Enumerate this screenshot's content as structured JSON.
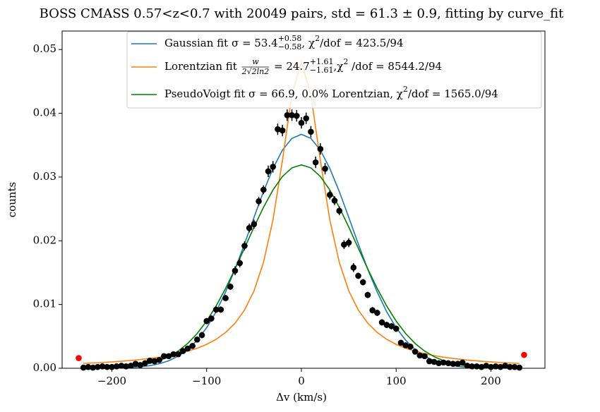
{
  "chart_data": {
    "type": "scatter",
    "title": "BOSS CMASS 0.57<z<0.7 with 20049 pairs, std = 61.3 ± 0.9, fitting by curve_fit",
    "x_label": "Δv (km/s)",
    "y_label": "counts",
    "xlim": [
      -252.5,
      257
    ],
    "ylim": [
      0,
      0.0529
    ],
    "xticks": [
      {
        "value": -200,
        "label": "−200"
      },
      {
        "value": -100,
        "label": "−100"
      },
      {
        "value": 0,
        "label": "0"
      },
      {
        "value": 100,
        "label": "100"
      },
      {
        "value": 200,
        "label": "200"
      }
    ],
    "yticks": [
      {
        "value": 0,
        "label": "0.00"
      },
      {
        "value": 0.01,
        "label": "0.01"
      },
      {
        "value": 0.02,
        "label": "0.02"
      },
      {
        "value": 0.03,
        "label": "0.03"
      },
      {
        "value": 0.04,
        "label": "0.04"
      },
      {
        "value": 0.05,
        "label": "0.05"
      }
    ],
    "legend": "upper right",
    "points": {
      "color": "#000000",
      "x": [
        -230,
        -225,
        -220,
        -215,
        -210,
        -205,
        -200,
        -195,
        -190,
        -185,
        -180,
        -175,
        -170,
        -165,
        -160,
        -155,
        -150,
        -145,
        -140,
        -135,
        -130,
        -125,
        -120,
        -115,
        -110,
        -105,
        -100,
        -95,
        -90,
        -85,
        -80,
        -75,
        -70,
        -65,
        -60,
        -55,
        -50,
        -45,
        -40,
        -35,
        -30,
        -25,
        -20,
        -15,
        -10,
        -5,
        0,
        5,
        10,
        15,
        20,
        25,
        30,
        35,
        40,
        45,
        50,
        55,
        60,
        65,
        70,
        75,
        80,
        85,
        90,
        95,
        100,
        105,
        110,
        115,
        120,
        125,
        130,
        135,
        140,
        145,
        150,
        155,
        160,
        165,
        170,
        175,
        180,
        185,
        190,
        195,
        200,
        205,
        210,
        215,
        220,
        225,
        230
      ],
      "values": [
        0.0001,
        0.0002,
        0.0001,
        0.0002,
        0.0003,
        0.0002,
        0.0002,
        0.0003,
        0.0004,
        0.0003,
        0.0004,
        0.0007,
        0.0005,
        0.0008,
        0.0012,
        0.0011,
        0.0013,
        0.0019,
        0.0019,
        0.0022,
        0.0022,
        0.0027,
        0.0031,
        0.0035,
        0.0045,
        0.0052,
        0.0074,
        0.0078,
        0.0092,
        0.0092,
        0.011,
        0.0128,
        0.0153,
        0.0165,
        0.0192,
        0.022,
        0.0226,
        0.0262,
        0.028,
        0.0309,
        0.0316,
        0.0375,
        0.0373,
        0.0397,
        0.0397,
        0.0396,
        0.0385,
        0.0392,
        0.0371,
        0.0323,
        0.0344,
        0.0313,
        0.0272,
        0.0263,
        0.0247,
        0.0194,
        0.0197,
        0.0158,
        0.0145,
        0.0135,
        0.0115,
        0.0091,
        0.0087,
        0.0072,
        0.0068,
        0.0066,
        0.0062,
        0.004,
        0.0036,
        0.0034,
        0.0026,
        0.002,
        0.0019,
        0.0011,
        0.001,
        0.0008,
        0.0009,
        0.0008,
        0.0007,
        0.0007,
        0.0009,
        0.0004,
        0.0003,
        0.0003,
        0.0002,
        0.0004,
        0.0002,
        0.0003,
        0.0002,
        0.0004,
        0.0002,
        0.0002,
        0.0001
      ],
      "yerr": [
        0.0001,
        0.0001,
        0.0001,
        0.0001,
        0.0001,
        0.0001,
        0.0001,
        0.0001,
        0.0001,
        0.0001,
        0.0001,
        0.0001,
        0.0001,
        0.0001,
        0.0003,
        0.0003,
        0.0003,
        0.0003,
        0.0003,
        0.0003,
        0.0003,
        0.0003,
        0.0003,
        0.0003,
        0.0003,
        0.0005,
        0.0005,
        0.0005,
        0.0005,
        0.0005,
        0.0005,
        0.0005,
        0.0007,
        0.0007,
        0.0007,
        0.0007,
        0.0007,
        0.0007,
        0.0007,
        0.0009,
        0.0009,
        0.0009,
        0.0009,
        0.0009,
        0.0009,
        0.0009,
        0.0009,
        0.0009,
        0.0009,
        0.0009,
        0.0009,
        0.0009,
        0.0007,
        0.0007,
        0.0007,
        0.0007,
        0.0007,
        0.0007,
        0.0005,
        0.0005,
        0.0005,
        0.0005,
        0.0005,
        0.0005,
        0.0005,
        0.0005,
        0.0005,
        0.0003,
        0.0003,
        0.0003,
        0.0003,
        0.0003,
        0.0003,
        0.0003,
        0.0003,
        0.0001,
        0.0001,
        0.0001,
        0.0001,
        0.0001,
        0.0001,
        0.0001,
        0.0001,
        0.0001,
        0.0001,
        0.0001,
        0.0001,
        0.0001,
        0.0001,
        0.0001,
        0.0001,
        0.0001,
        0.0001
      ]
    },
    "outliers": [
      {
        "color": "#ff0000",
        "x": [
          -235,
          235
        ],
        "values": [
          0.0016,
          0.0021
        ]
      },
      {
        "color": "#c8c8c8",
        "x": [
          13
        ],
        "values": [
          0.0415
        ]
      }
    ],
    "curve_x": [
      -230,
      -220,
      -210,
      -200,
      -190,
      -180,
      -170,
      -160,
      -150,
      -140,
      -130,
      -120,
      -110,
      -100,
      -90,
      -80,
      -70,
      -60,
      -50,
      -40,
      -30,
      -20,
      -10,
      0,
      10,
      20,
      30,
      40,
      50,
      60,
      70,
      80,
      90,
      100,
      110,
      120,
      130,
      140,
      150,
      160,
      170,
      180,
      190,
      200,
      210,
      220,
      230
    ],
    "series": [
      {
        "color": "#1f77b4",
        "name": [
          "Gaussian fit σ = 53.4",
          {
            "sup": "+0.58",
            "sub": "−0.58"
          },
          ", χ",
          {
            "sup": "2"
          },
          "/dof = 423.5/94"
        ],
        "values": [
          3e-06,
          7e-06,
          1.6e-05,
          3.3e-05,
          6.5e-05,
          0.000125,
          0.00023,
          0.00041,
          0.00071,
          0.00118,
          0.0019,
          0.00294,
          0.0044,
          0.00636,
          0.00887,
          0.01195,
          0.01554,
          0.01952,
          0.02367,
          0.02772,
          0.03134,
          0.03422,
          0.03606,
          0.0367,
          0.03606,
          0.03422,
          0.03134,
          0.02772,
          0.02367,
          0.01952,
          0.01554,
          0.01195,
          0.00887,
          0.00636,
          0.0044,
          0.00294,
          0.0019,
          0.00118,
          0.00071,
          0.00041,
          0.00023,
          0.000125,
          6.5e-05,
          3.3e-05,
          1.6e-05,
          7e-06,
          3e-06
        ]
      },
      {
        "color": "#ff7f0e",
        "name": [
          "Lorentzian fit ",
          {
            "num": "w",
            "den": "2√2ln2"
          },
          " = 24.7",
          {
            "sup": "+1.61",
            "sub": "−1.61"
          },
          ",χ",
          {
            "sup": "2"
          },
          " /dof = 8544.2/94"
        ],
        "values": [
          0.00076,
          0.00083,
          0.0009,
          0.001,
          0.0011,
          0.00122,
          0.00137,
          0.00154,
          0.00174,
          0.00199,
          0.00229,
          0.00267,
          0.00314,
          0.00375,
          0.00454,
          0.00561,
          0.00707,
          0.00914,
          0.01214,
          0.01661,
          0.02327,
          0.0326,
          0.04293,
          0.048,
          0.04293,
          0.0326,
          0.02327,
          0.01661,
          0.01214,
          0.00914,
          0.00707,
          0.00561,
          0.00454,
          0.00375,
          0.00314,
          0.00267,
          0.00229,
          0.00199,
          0.00174,
          0.00154,
          0.00137,
          0.00122,
          0.0011,
          0.001,
          0.0009,
          0.00083,
          0.00076
        ]
      },
      {
        "color": "#008000",
        "name": [
          "PseudoVoigt fit σ = 66.9, 0.0% Lorentzian, χ",
          {
            "sup": "2"
          },
          "/dof = 1565.0/94"
        ],
        "values": [
          1e-05,
          3e-05,
          5e-05,
          9e-05,
          0.00016,
          0.00028,
          0.00047,
          0.00076,
          0.00119,
          0.00182,
          0.0027,
          0.00389,
          0.00545,
          0.0074,
          0.00977,
          0.01252,
          0.01559,
          0.01885,
          0.02214,
          0.02525,
          0.02797,
          0.03009,
          0.03144,
          0.0319,
          0.03144,
          0.03009,
          0.02797,
          0.02525,
          0.02214,
          0.01885,
          0.01559,
          0.01252,
          0.00977,
          0.0074,
          0.00545,
          0.00389,
          0.0027,
          0.00182,
          0.00119,
          0.00076,
          0.00047,
          0.00028,
          0.00016,
          9e-05,
          5e-05,
          3e-05,
          1e-05
        ]
      }
    ]
  }
}
